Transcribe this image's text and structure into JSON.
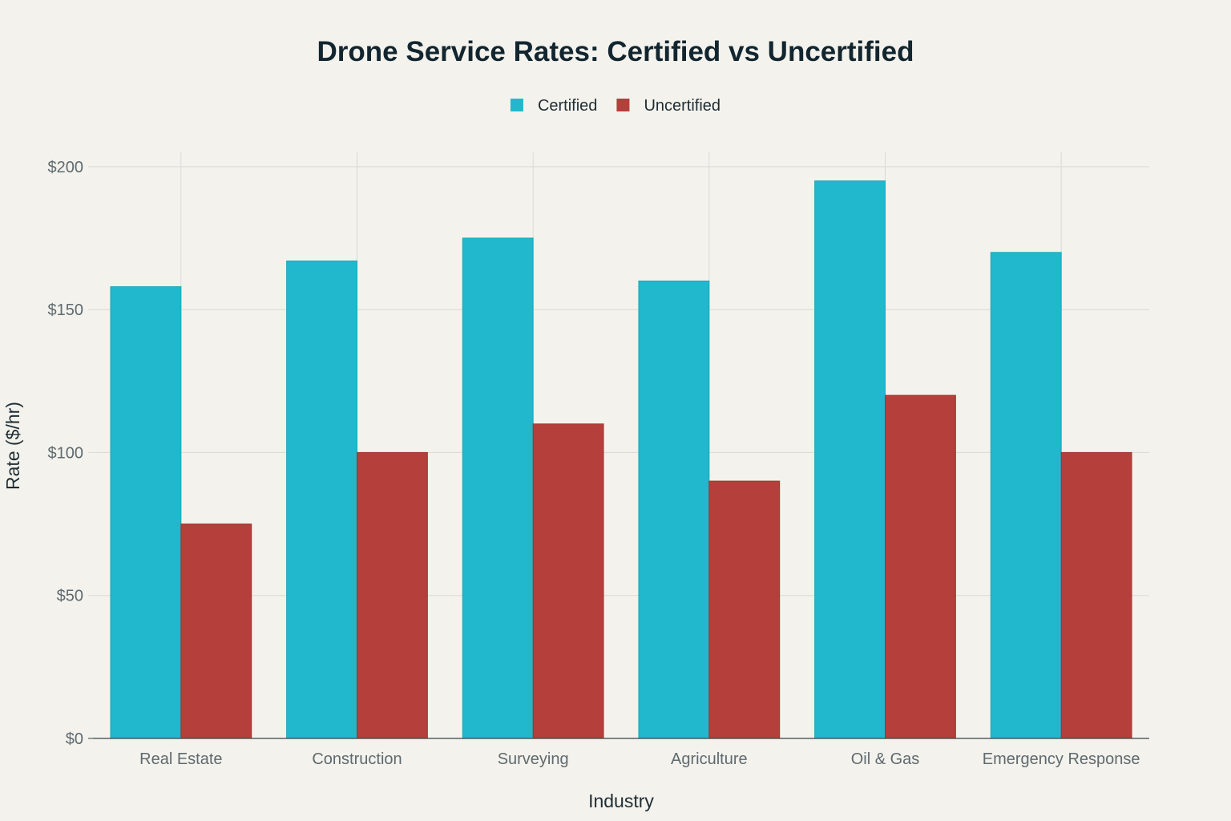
{
  "chart_data": {
    "type": "bar",
    "title": "Drone Service Rates: Certified vs Uncertified",
    "xlabel": "Industry",
    "ylabel": "Rate ($/hr)",
    "ylim": [
      0,
      205
    ],
    "yticks": [
      0,
      50,
      100,
      150,
      200
    ],
    "ytick_labels": [
      "$0",
      "$50",
      "$100",
      "$150",
      "$200"
    ],
    "grid": true,
    "legend_position": "top-center",
    "categories": [
      "Real Estate",
      "Construction",
      "Surveying",
      "Agriculture",
      "Oil & Gas",
      "Emergency Response"
    ],
    "series": [
      {
        "name": "Certified",
        "color": "#21b8cd",
        "values": [
          158,
          167,
          175,
          160,
          195,
          170
        ]
      },
      {
        "name": "Uncertified",
        "color": "#b43f3b",
        "values": [
          75,
          100,
          110,
          90,
          120,
          100
        ]
      }
    ]
  }
}
